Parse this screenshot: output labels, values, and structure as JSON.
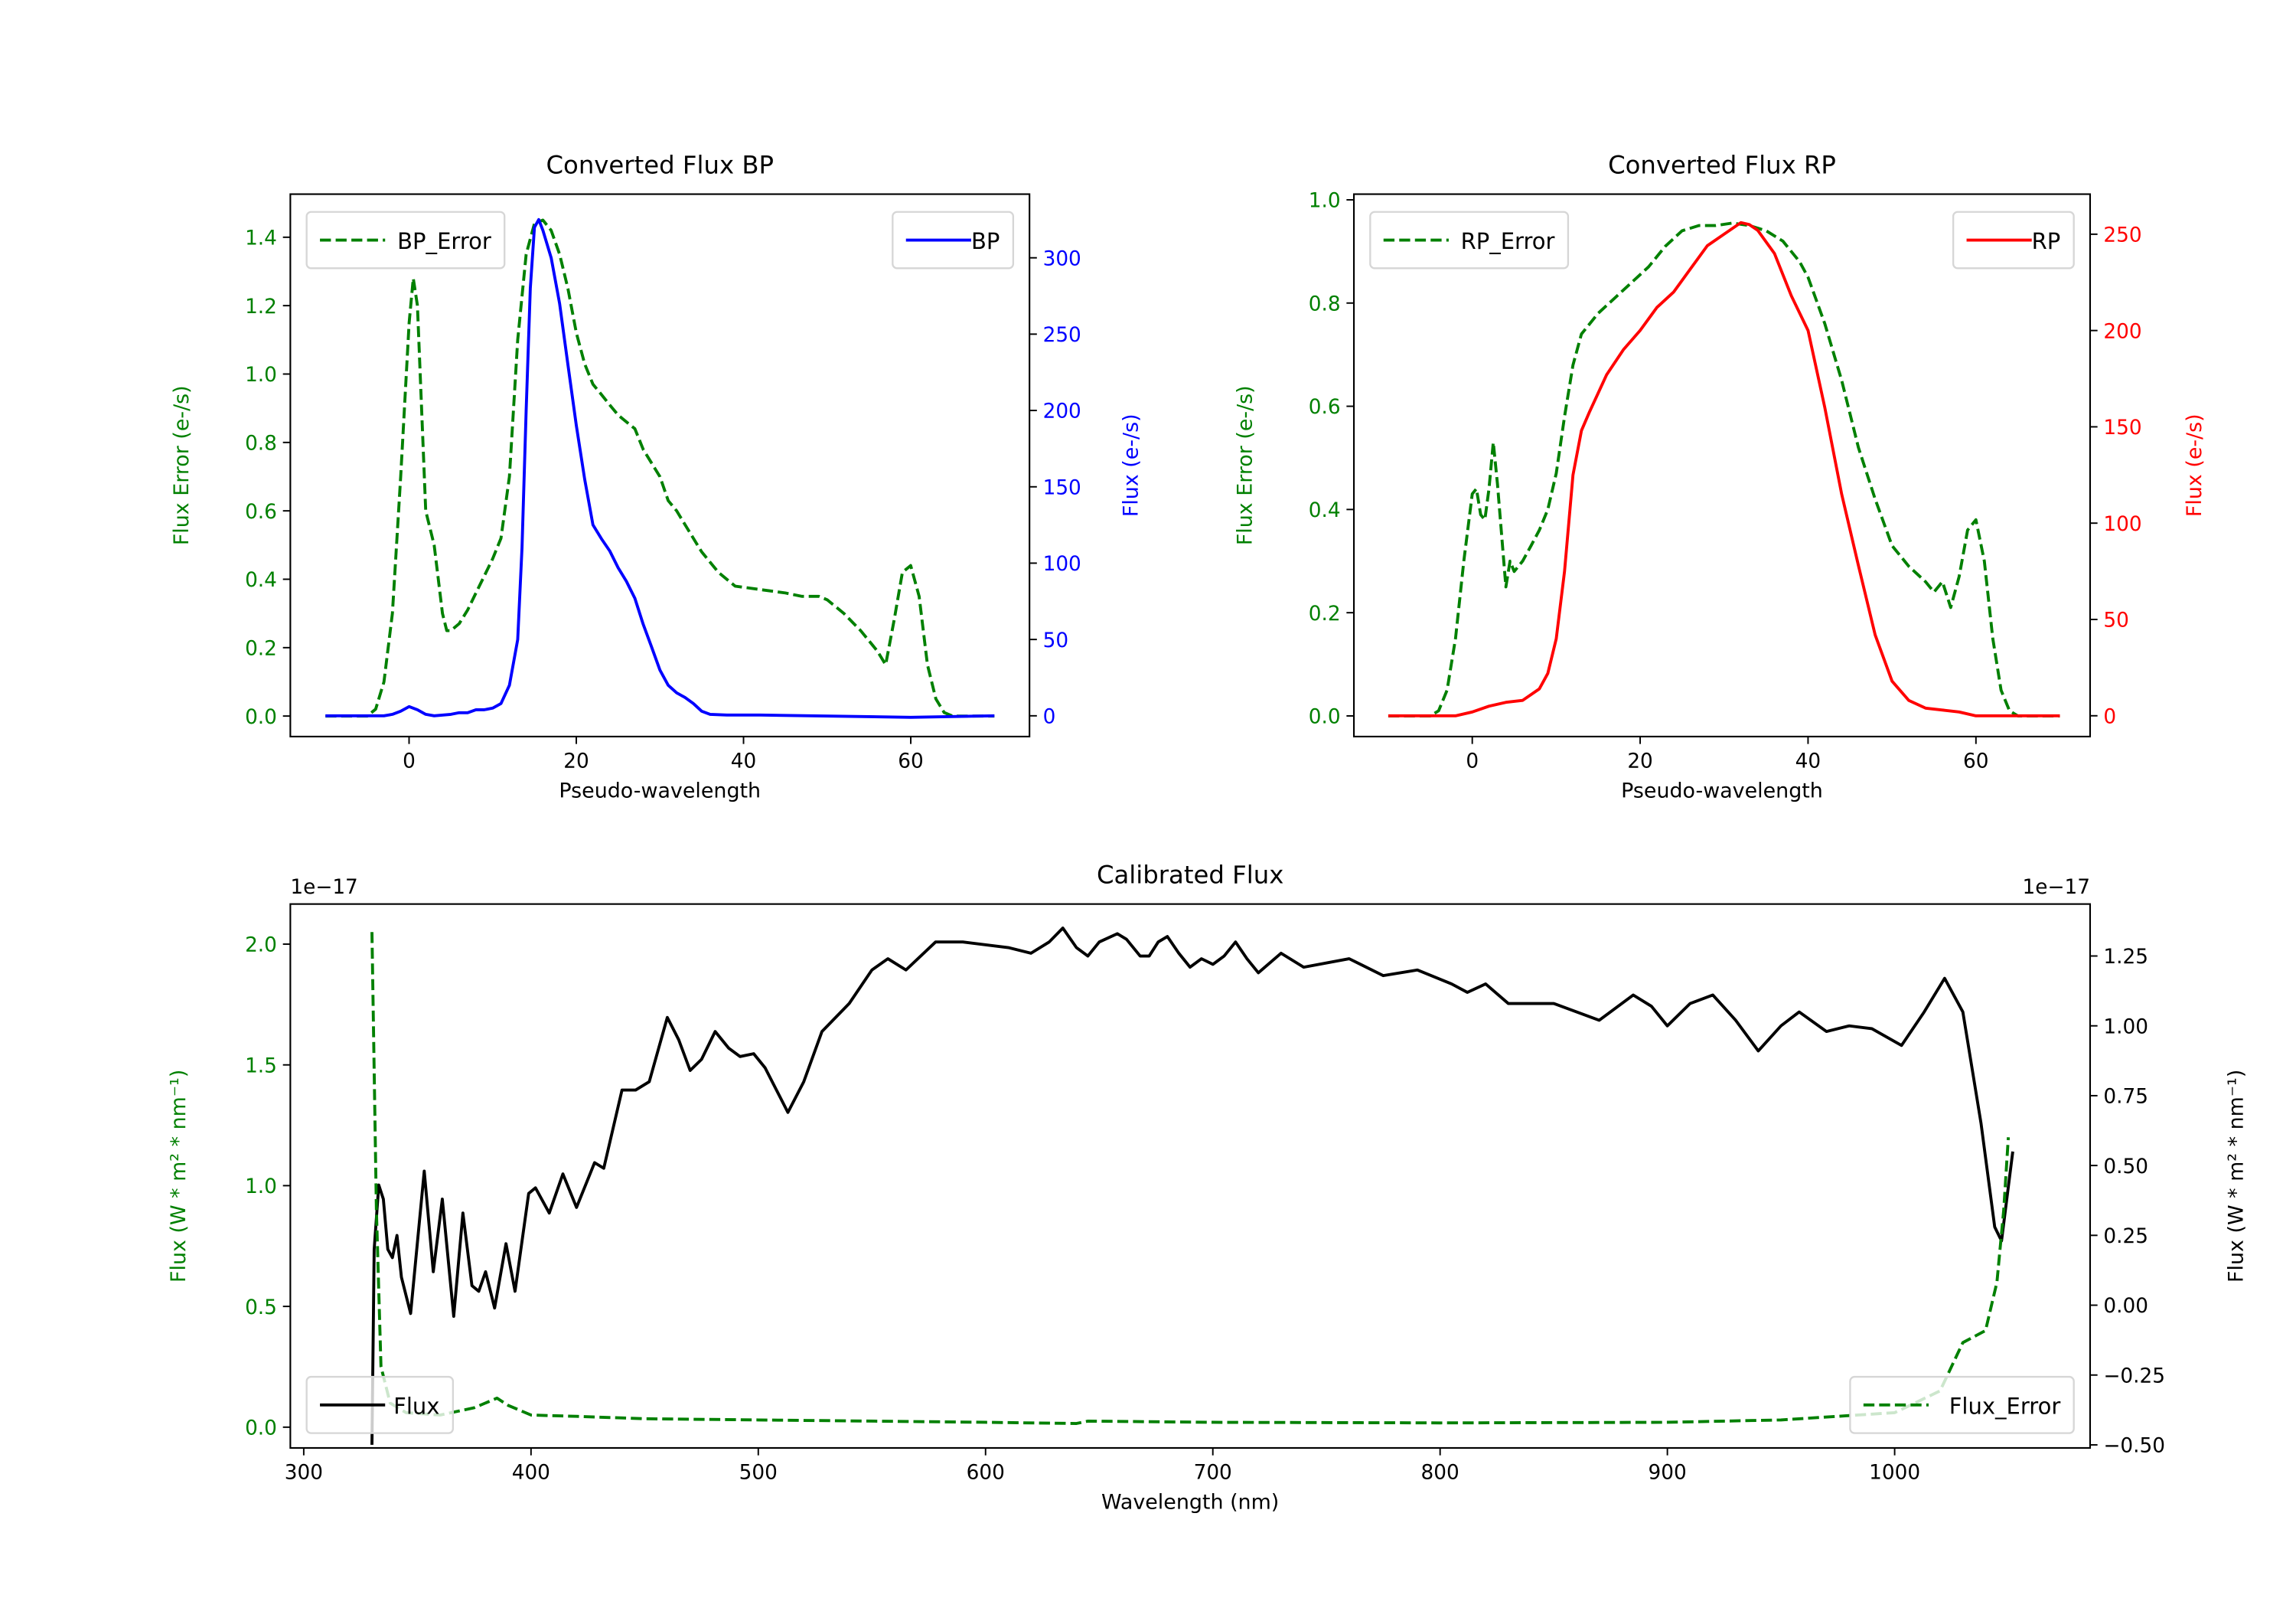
{
  "chart_data": [
    {
      "type": "line",
      "title": "Converted Flux BP",
      "xlabel": "Pseudo-wavelength",
      "ylabel_left": "Flux Error (e-/s)",
      "ylabel_right": "Flux (e-/s)",
      "xlim": [
        -14.2,
        74.2
      ],
      "ylim_left": [
        -0.06,
        1.526
      ],
      "ylim_right": [
        -13.6,
        341.7
      ],
      "xticks": [
        0,
        20,
        40,
        60
      ],
      "xtick_labels": [
        "0",
        "20",
        "40",
        "60"
      ],
      "yticks_left": [
        0,
        0.2,
        0.4,
        0.6,
        0.8,
        1.0,
        1.2,
        1.4
      ],
      "ytick_labels_left": [
        "0.0",
        "0.2",
        "0.4",
        "0.6",
        "0.8",
        "1.0",
        "1.2",
        "1.4"
      ],
      "yticks_right": [
        0,
        50,
        100,
        150,
        200,
        250,
        300
      ],
      "ytick_labels_right": [
        "0",
        "50",
        "100",
        "150",
        "200",
        "250",
        "300"
      ],
      "left_color": "#008000",
      "right_color": "#0000ff",
      "series": [
        {
          "name": "BP_Error",
          "axis": "left",
          "style": "dashed",
          "color": "#008000",
          "x": [
            -10,
            -5,
            -4,
            -3,
            -2,
            -1,
            0,
            0.5,
            1,
            1.5,
            2,
            3,
            4,
            4.5,
            5,
            6,
            7,
            8,
            9,
            10,
            11,
            12,
            13,
            14,
            15,
            16,
            17,
            18,
            19,
            20,
            21,
            22,
            23,
            24,
            25,
            26,
            27,
            28,
            30,
            31,
            32,
            33,
            35,
            37,
            39,
            42,
            45,
            47,
            49,
            50,
            52,
            54,
            56,
            57,
            58,
            59,
            60,
            61,
            62,
            63,
            64,
            65,
            70
          ],
          "y": [
            0,
            0,
            0.02,
            0.1,
            0.3,
            0.7,
            1.15,
            1.28,
            1.2,
            0.9,
            0.6,
            0.5,
            0.3,
            0.25,
            0.25,
            0.27,
            0.31,
            0.36,
            0.41,
            0.46,
            0.52,
            0.7,
            1.1,
            1.35,
            1.44,
            1.45,
            1.42,
            1.35,
            1.25,
            1.12,
            1.03,
            0.97,
            0.94,
            0.91,
            0.88,
            0.86,
            0.84,
            0.78,
            0.7,
            0.63,
            0.6,
            0.56,
            0.48,
            0.42,
            0.38,
            0.37,
            0.36,
            0.35,
            0.35,
            0.34,
            0.3,
            0.25,
            0.19,
            0.15,
            0.28,
            0.42,
            0.44,
            0.35,
            0.15,
            0.05,
            0.01,
            0,
            0
          ]
        },
        {
          "name": "BP",
          "axis": "right",
          "style": "solid",
          "color": "#0000ff",
          "x": [
            -10,
            -3,
            -2,
            -1,
            0,
            1,
            2,
            3,
            5,
            6,
            7,
            8,
            9,
            10,
            11,
            12,
            13,
            13.5,
            14,
            14.5,
            15,
            15.5,
            16,
            17,
            18,
            19,
            20,
            21,
            22,
            23,
            24,
            25,
            26,
            27,
            28,
            29,
            30,
            31,
            32,
            33,
            34,
            35,
            36,
            38,
            42,
            48,
            60,
            70
          ],
          "y": [
            0,
            0,
            1,
            3,
            6,
            4,
            1,
            0,
            1,
            2,
            2,
            4,
            4,
            5,
            8,
            20,
            50,
            110,
            200,
            280,
            320,
            325,
            318,
            300,
            270,
            230,
            190,
            155,
            125,
            116,
            108,
            97,
            88,
            77,
            60,
            45,
            30,
            20,
            15,
            12,
            8,
            3,
            1,
            0.5,
            0.5,
            0,
            -1,
            0
          ]
        }
      ],
      "legends": [
        {
          "axis": "left",
          "placement": "upper left",
          "entries": [
            "BP_Error"
          ]
        },
        {
          "axis": "right",
          "placement": "upper right",
          "entries": [
            "BP"
          ]
        }
      ]
    },
    {
      "type": "line",
      "title": "Converted Flux RP",
      "xlabel": "Pseudo-wavelength",
      "ylabel_left": "Flux Error (e-/s)",
      "ylabel_right": "Flux (e-/s)",
      "xlim": [
        -14.1,
        73.6
      ],
      "ylim_left": [
        -0.04,
        1.011
      ],
      "ylim_right": [
        -10.8,
        270.8
      ],
      "xticks": [
        0,
        20,
        40,
        60
      ],
      "xtick_labels": [
        "0",
        "20",
        "40",
        "60"
      ],
      "yticks_left": [
        0,
        0.2,
        0.4,
        0.6,
        0.8,
        1.0
      ],
      "ytick_labels_left": [
        "0.0",
        "0.2",
        "0.4",
        "0.6",
        "0.8",
        "1.0"
      ],
      "yticks_right": [
        0,
        50,
        100,
        150,
        200,
        250
      ],
      "ytick_labels_right": [
        "0",
        "50",
        "100",
        "150",
        "200",
        "250"
      ],
      "left_color": "#008000",
      "right_color": "#ff0000",
      "series": [
        {
          "name": "RP_Error",
          "axis": "left",
          "style": "dashed",
          "color": "#008000",
          "x": [
            -10,
            -5,
            -4,
            -3,
            -2,
            -1,
            0,
            0.5,
            1,
            1.5,
            2,
            2.5,
            3,
            4,
            4.5,
            5,
            6,
            7,
            8,
            9,
            10,
            11,
            12,
            13,
            15,
            17,
            19,
            21,
            23,
            25,
            27,
            29,
            31,
            33,
            35,
            37,
            39,
            40,
            42,
            44,
            46,
            48,
            50,
            52,
            54,
            55,
            56,
            57,
            58,
            59,
            60,
            61,
            62,
            63,
            64,
            65,
            70
          ],
          "y": [
            0,
            0,
            0.01,
            0.05,
            0.15,
            0.3,
            0.43,
            0.44,
            0.39,
            0.38,
            0.44,
            0.53,
            0.45,
            0.25,
            0.3,
            0.28,
            0.3,
            0.33,
            0.36,
            0.4,
            0.47,
            0.58,
            0.68,
            0.74,
            0.78,
            0.81,
            0.84,
            0.87,
            0.91,
            0.94,
            0.95,
            0.95,
            0.955,
            0.95,
            0.94,
            0.92,
            0.88,
            0.85,
            0.76,
            0.65,
            0.52,
            0.42,
            0.33,
            0.29,
            0.26,
            0.24,
            0.26,
            0.21,
            0.27,
            0.36,
            0.38,
            0.3,
            0.15,
            0.05,
            0.01,
            0,
            0
          ]
        },
        {
          "name": "RP",
          "axis": "right",
          "style": "solid",
          "color": "#ff0000",
          "x": [
            -10,
            -2,
            0,
            2,
            4,
            6,
            8,
            9,
            10,
            11,
            12,
            13,
            14,
            16,
            18,
            20,
            22,
            24,
            26,
            28,
            30,
            32,
            33,
            34,
            36,
            38,
            40,
            42,
            44,
            46,
            48,
            50,
            52,
            54,
            56,
            58,
            60,
            70
          ],
          "y": [
            0,
            0,
            2,
            5,
            7,
            8,
            14,
            22,
            40,
            75,
            125,
            148,
            158,
            177,
            190,
            200,
            212,
            220,
            232,
            244,
            250,
            256,
            255,
            252,
            240,
            218,
            200,
            160,
            115,
            78,
            42,
            18,
            8,
            4,
            3,
            2,
            0,
            0
          ]
        }
      ],
      "legends": [
        {
          "axis": "left",
          "placement": "upper left",
          "entries": [
            "RP_Error"
          ]
        },
        {
          "axis": "right",
          "placement": "upper right",
          "entries": [
            "RP"
          ]
        }
      ]
    },
    {
      "type": "line",
      "title": "Calibrated Flux",
      "xlabel": "Wavelength (nm)",
      "ylabel_left": "Flux (W * m² * nm⁻¹)",
      "ylabel_right": "Flux (W * m² * nm⁻¹)",
      "offset_left": "1e−17",
      "offset_right": "1e−17",
      "xlim": [
        294.1,
        1086
      ],
      "ylim_left": [
        -0.086,
        2.166
      ],
      "ylim_right": [
        -0.511,
        1.436
      ],
      "xticks": [
        300,
        400,
        500,
        600,
        700,
        800,
        900,
        1000
      ],
      "xtick_labels": [
        "300",
        "400",
        "500",
        "600",
        "700",
        "800",
        "900",
        "1000"
      ],
      "yticks_left": [
        0,
        0.5,
        1.0,
        1.5,
        2.0
      ],
      "ytick_labels_left": [
        "0.0",
        "0.5",
        "1.0",
        "1.5",
        "2.0"
      ],
      "yticks_right": [
        -0.5,
        -0.25,
        0,
        0.25,
        0.5,
        0.75,
        1.0,
        1.25
      ],
      "ytick_labels_right": [
        "−0.50",
        "−0.25",
        "0.00",
        "0.25",
        "0.50",
        "0.75",
        "1.00",
        "1.25"
      ],
      "left_color": "#008000",
      "right_color": "#000000",
      "series": [
        {
          "name": "Flux",
          "axis": "right",
          "style": "solid",
          "color": "#000000",
          "x": [
            330,
            331,
            333,
            335,
            337,
            339,
            341,
            343,
            347,
            353,
            357,
            361,
            366,
            370,
            374,
            377,
            380,
            384,
            389,
            393,
            399,
            402,
            408,
            414,
            420,
            428,
            432,
            440,
            446,
            452,
            460,
            465,
            470,
            475,
            481,
            487,
            492,
            498,
            503,
            513,
            520,
            528,
            540,
            550,
            557,
            565,
            578,
            590,
            610,
            620,
            628,
            634,
            640,
            645,
            650,
            658,
            662,
            668,
            672,
            676,
            680,
            685,
            690,
            695,
            700,
            705,
            710,
            715,
            720,
            730,
            740,
            760,
            775,
            790,
            805,
            812,
            820,
            830,
            850,
            870,
            885,
            893,
            900,
            910,
            920,
            930,
            940,
            950,
            958,
            970,
            980,
            990,
            1003,
            1013,
            1022,
            1030,
            1038,
            1044,
            1047,
            1052
          ],
          "y": [
            -0.5,
            0.2,
            0.43,
            0.38,
            0.2,
            0.17,
            0.25,
            0.1,
            -0.03,
            0.48,
            0.12,
            0.38,
            -0.04,
            0.33,
            0.07,
            0.05,
            0.12,
            -0.01,
            0.22,
            0.05,
            0.4,
            0.42,
            0.33,
            0.47,
            0.35,
            0.51,
            0.49,
            0.77,
            0.77,
            0.8,
            1.03,
            0.95,
            0.84,
            0.88,
            0.98,
            0.92,
            0.89,
            0.9,
            0.85,
            0.69,
            0.8,
            0.98,
            1.08,
            1.2,
            1.24,
            1.2,
            1.3,
            1.3,
            1.28,
            1.26,
            1.3,
            1.35,
            1.28,
            1.25,
            1.3,
            1.33,
            1.31,
            1.25,
            1.25,
            1.3,
            1.32,
            1.26,
            1.21,
            1.24,
            1.22,
            1.25,
            1.3,
            1.24,
            1.19,
            1.26,
            1.21,
            1.24,
            1.18,
            1.2,
            1.15,
            1.12,
            1.15,
            1.08,
            1.08,
            1.02,
            1.11,
            1.07,
            1.0,
            1.08,
            1.11,
            1.02,
            0.91,
            1.0,
            1.05,
            0.98,
            1.0,
            0.99,
            0.93,
            1.05,
            1.17,
            1.05,
            0.65,
            0.28,
            0.23,
            0.55
          ]
        },
        {
          "name": "Flux_Error",
          "axis": "left",
          "style": "dashed",
          "color": "#008000",
          "x": [
            330,
            332,
            334,
            338,
            345,
            360,
            375,
            385,
            390,
            400,
            420,
            450,
            500,
            600,
            640,
            645,
            700,
            800,
            900,
            950,
            1000,
            1020,
            1030,
            1040,
            1045,
            1048,
            1050
          ],
          "y": [
            2.05,
            0.9,
            0.25,
            0.1,
            0.06,
            0.05,
            0.08,
            0.12,
            0.09,
            0.05,
            0.045,
            0.035,
            0.03,
            0.02,
            0.015,
            0.025,
            0.02,
            0.018,
            0.02,
            0.03,
            0.06,
            0.15,
            0.35,
            0.4,
            0.6,
            0.9,
            1.2
          ]
        }
      ],
      "legends": [
        {
          "axis": "right",
          "placement": "lower left",
          "entries": [
            "Flux"
          ]
        },
        {
          "axis": "left",
          "placement": "lower right",
          "entries": [
            "Flux_Error"
          ]
        }
      ]
    }
  ]
}
